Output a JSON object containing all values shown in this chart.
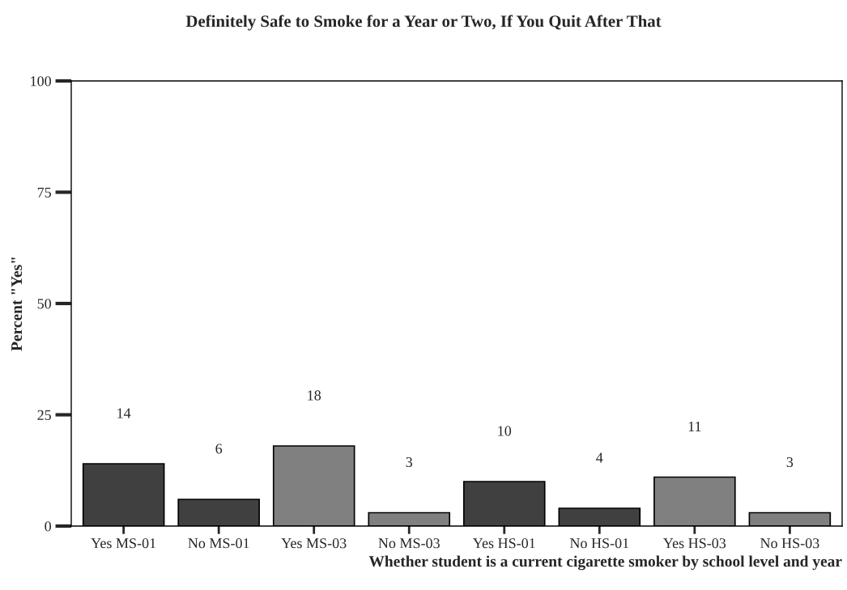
{
  "chart_data": {
    "type": "bar",
    "title": "Definitely Safe to Smoke for a Year or Two, If You Quit After That",
    "xlabel": "Whether student is a current cigarette smoker by school level and year",
    "ylabel": "Percent \"Yes\"",
    "categories": [
      "Yes MS-01",
      "No MS-01",
      "Yes MS-03",
      "No MS-03",
      "Yes HS-01",
      "No HS-01",
      "Yes HS-03",
      "No HS-03"
    ],
    "values": [
      14,
      6,
      18,
      3,
      10,
      4,
      11,
      3
    ],
    "colors": [
      "#404040",
      "#404040",
      "#808080",
      "#808080",
      "#404040",
      "#404040",
      "#808080",
      "#808080"
    ],
    "ylim": [
      0,
      100
    ],
    "yticks": [
      0,
      25,
      50,
      75,
      100
    ],
    "grid": false,
    "data_labels": true
  }
}
